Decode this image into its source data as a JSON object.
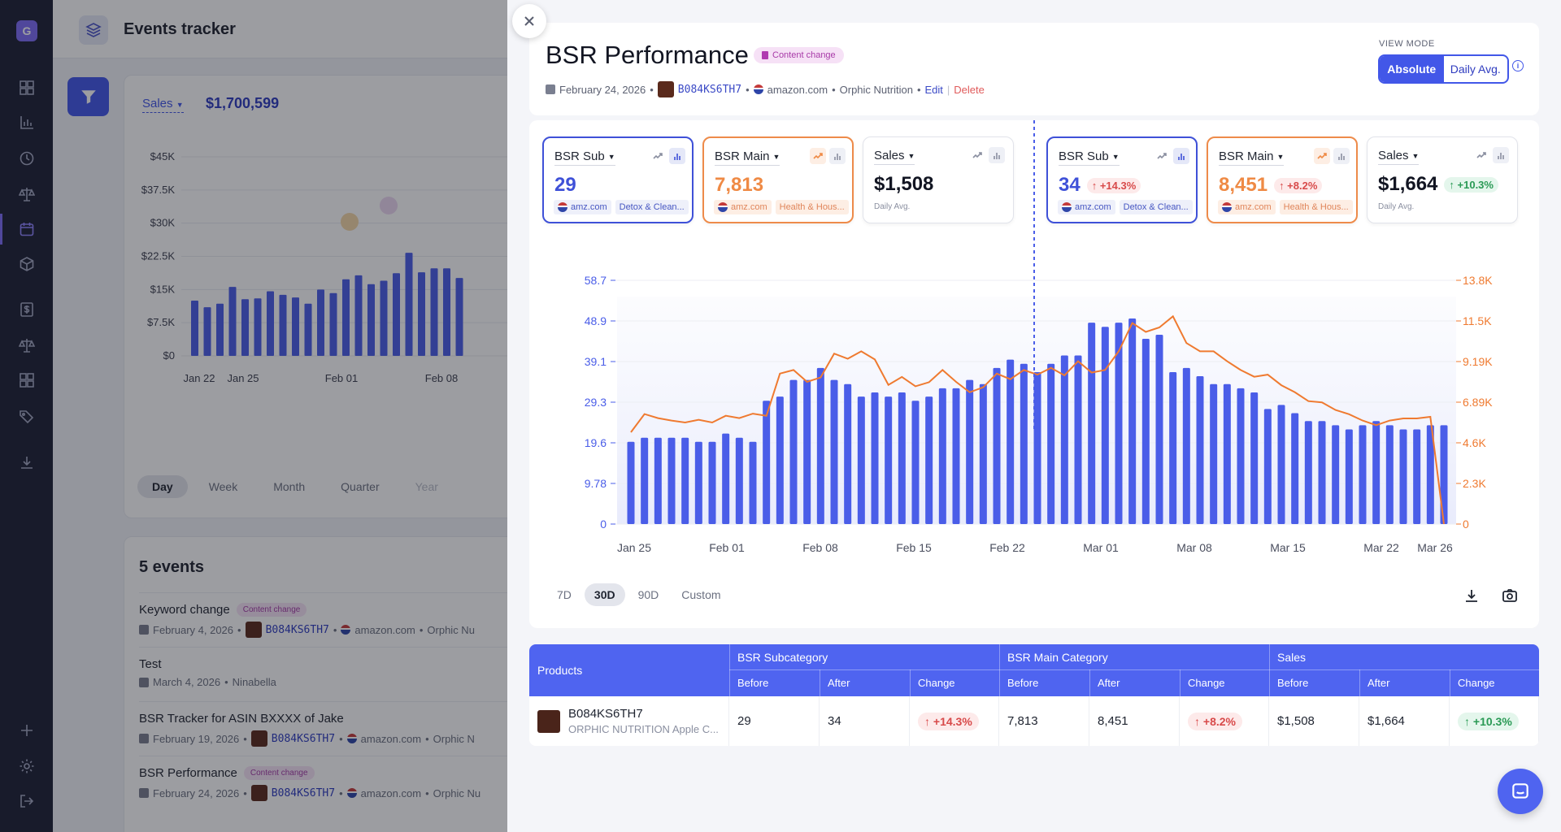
{
  "app": {
    "logo_letter": "G",
    "title": "Events tracker"
  },
  "background_chart": {
    "sales_select": "Sales",
    "sales_total": "$1,700,599",
    "y_ticks": [
      "$45K",
      "$37.5K",
      "$30K",
      "$22.5K",
      "$15K",
      "$7.5K",
      "$0"
    ],
    "x_ticks": [
      "Jan 22",
      "Jan 25",
      "Feb 01",
      "Feb 08"
    ],
    "periods": [
      "Day",
      "Week",
      "Month",
      "Quarter",
      "Year"
    ],
    "active_period": "Day"
  },
  "events": {
    "title": "5 events",
    "items": [
      {
        "title": "Keyword change",
        "chip": "Content change",
        "date": "February 4, 2026",
        "asin": "B084KS6TH7",
        "market": "amazon.com",
        "brand": "Orphic Nu"
      },
      {
        "title": "Test",
        "chip": "",
        "date": "March 4, 2026",
        "user": "Ninabella"
      },
      {
        "title": "BSR Tracker for ASIN BXXXX of Jake",
        "chip": "",
        "date": "February 19, 2026",
        "asin": "B084KS6TH7",
        "market": "amazon.com",
        "brand": "Orphic N"
      },
      {
        "title": "BSR Performance",
        "chip": "Content change",
        "date": "February 24, 2026",
        "asin": "B084KS6TH7",
        "market": "amazon.com",
        "brand": "Orphic Nu"
      }
    ]
  },
  "modal": {
    "title": "BSR Performance",
    "chip": "Content change",
    "date": "February 24, 2026",
    "asin": "B084KS6TH7",
    "market": "amazon.com",
    "brand": "Orphic Nutrition",
    "edit": "Edit",
    "delete": "Delete",
    "view_mode_label": "VIEW MODE",
    "view_options": [
      "Absolute",
      "Daily Avg."
    ],
    "view_active": "Absolute",
    "info": "i"
  },
  "metrics_before": [
    {
      "label": "BSR Sub",
      "value": "29",
      "color": "blue",
      "tags": [
        "amz.com",
        "Detox & Clean..."
      ]
    },
    {
      "label": "BSR Main",
      "value": "7,813",
      "color": "orange",
      "tags": [
        "amz.com",
        "Health & Hous..."
      ]
    },
    {
      "label": "Sales",
      "value": "$1,508",
      "color": "dark",
      "sub": "Daily Avg."
    }
  ],
  "metrics_after": [
    {
      "label": "BSR Sub",
      "value": "34",
      "change": "↑ +14.3%",
      "change_color": "red",
      "color": "blue",
      "tags": [
        "amz.com",
        "Detox & Clean..."
      ]
    },
    {
      "label": "BSR Main",
      "value": "8,451",
      "change": "↑ +8.2%",
      "change_color": "red",
      "color": "orange",
      "tags": [
        "amz.com",
        "Health & Hous..."
      ]
    },
    {
      "label": "Sales",
      "value": "$1,664",
      "change": "↑ +10.3%",
      "change_color": "green",
      "color": "dark",
      "sub": "Daily Avg."
    }
  ],
  "chart_data": {
    "type": "bar",
    "x_ticks": [
      "Jan 25",
      "Feb 01",
      "Feb 08",
      "Feb 15",
      "Feb 22",
      "Mar 01",
      "Mar 08",
      "Mar 15",
      "Mar 22",
      "Mar 26"
    ],
    "y_left_ticks": [
      "58.7",
      "48.9",
      "39.1",
      "29.3",
      "19.6",
      "9.78",
      "0"
    ],
    "y_right_ticks": [
      "13.8K",
      "11.5K",
      "9.19K",
      "6.89K",
      "4.6K",
      "2.3K",
      "0"
    ],
    "ylim_left": [
      0,
      58.7
    ],
    "ylim_right": [
      0,
      13800
    ],
    "event_marker": "Feb 24",
    "series": [
      {
        "name": "BSR Sub",
        "axis": "left",
        "type": "bar",
        "color": "#4a5de8",
        "values": [
          19.8,
          20.8,
          20.8,
          20.8,
          20.8,
          19.8,
          19.8,
          21.8,
          20.8,
          19.8,
          29.7,
          30.7,
          34.7,
          34.7,
          37.6,
          34.7,
          33.7,
          30.7,
          31.7,
          30.7,
          31.7,
          29.7,
          30.7,
          32.7,
          32.7,
          34.7,
          33.7,
          37.6,
          39.6,
          38.6,
          36.6,
          38.6,
          40.6,
          40.6,
          48.5,
          47.5,
          48.5,
          49.5,
          44.6,
          45.6,
          36.6,
          37.6,
          35.6,
          33.7,
          33.7,
          32.7,
          31.7,
          27.7,
          28.7,
          26.7,
          24.8,
          24.8,
          23.8,
          22.8,
          23.8,
          24.8,
          23.8,
          22.8,
          22.8,
          23.8,
          23.8
        ]
      },
      {
        "name": "BSR Main",
        "axis": "right",
        "type": "line",
        "color": "#ef7a30",
        "values": [
          5200,
          6230,
          6000,
          5860,
          5750,
          5900,
          5750,
          6130,
          6000,
          6250,
          6130,
          8520,
          8720,
          8050,
          8300,
          9650,
          9360,
          9780,
          9320,
          7880,
          8330,
          7800,
          8030,
          8720,
          8050,
          7460,
          7740,
          8520,
          8200,
          8720,
          8460,
          8840,
          8420,
          9220,
          8580,
          8720,
          9780,
          11380,
          10880,
          11130,
          11760,
          10250,
          9780,
          9780,
          9220,
          8720,
          8340,
          8460,
          7860,
          7460,
          6960,
          6890,
          6460,
          6220,
          5860,
          5600,
          5860,
          5980,
          5980,
          6070,
          0
        ]
      }
    ]
  },
  "chart_controls": {
    "ranges": [
      "7D",
      "30D",
      "90D",
      "Custom"
    ],
    "active_range": "30D"
  },
  "table": {
    "headers": {
      "products": "Products",
      "groups": [
        "BSR Subcategory",
        "BSR Main Category",
        "Sales"
      ],
      "sub": [
        "Before",
        "After",
        "Change"
      ]
    },
    "row": {
      "asin": "B084KS6TH7",
      "name": "ORPHIC NUTRITION Apple C...",
      "values": [
        "29",
        "34",
        "↑ +14.3%",
        "7,813",
        "8,451",
        "↑ +8.2%",
        "$1,508",
        "$1,664",
        "↑ +10.3%"
      ]
    }
  },
  "colors": {
    "accent": "#4257e8",
    "bar": "#4a5de8",
    "line": "#ef7a30",
    "sidebar": "#1d2035"
  }
}
